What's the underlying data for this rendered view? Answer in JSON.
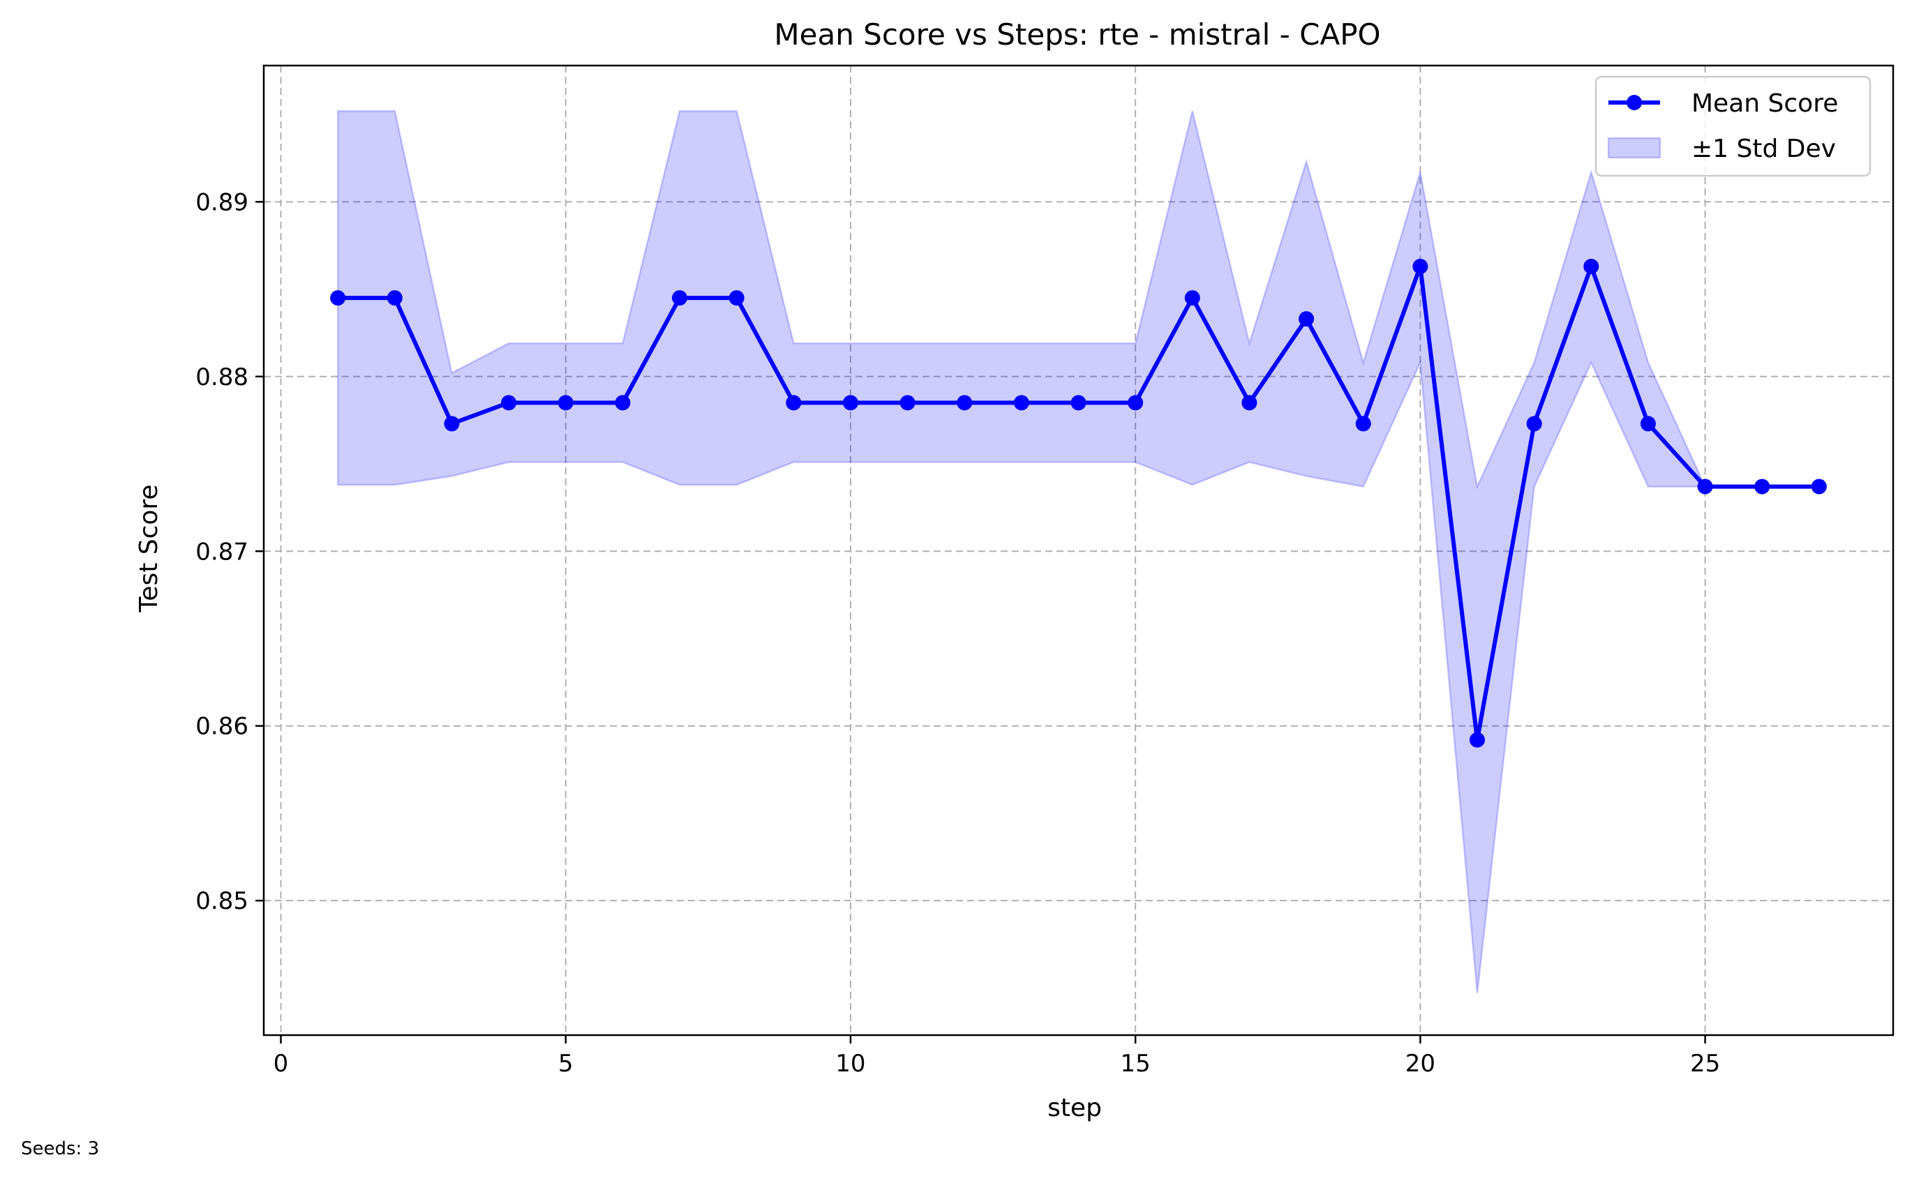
{
  "chart_data": {
    "type": "line",
    "title": "Mean Score vs Steps: rte - mistral - CAPO",
    "xlabel": "step",
    "ylabel": "Test Score",
    "xlim": [
      -0.3,
      28.3
    ],
    "ylim": [
      0.8423,
      0.8978
    ],
    "x_ticks": [
      0,
      5,
      10,
      15,
      20,
      25
    ],
    "y_ticks": [
      0.85,
      0.86,
      0.87,
      0.88,
      0.89
    ],
    "y_tick_labels": [
      "0.85",
      "0.86",
      "0.87",
      "0.88",
      "0.89"
    ],
    "grid": true,
    "legend_position": "top-right",
    "x": [
      1,
      2,
      3,
      4,
      5,
      6,
      7,
      8,
      9,
      10,
      11,
      12,
      13,
      14,
      15,
      16,
      17,
      18,
      19,
      20,
      21,
      22,
      23,
      24,
      25,
      26,
      27
    ],
    "series": [
      {
        "name": "Mean Score",
        "color": "#0000ff",
        "values": [
          0.8845,
          0.8845,
          0.8773,
          0.8785,
          0.8785,
          0.8785,
          0.8845,
          0.8845,
          0.8785,
          0.8785,
          0.8785,
          0.8785,
          0.8785,
          0.8785,
          0.8785,
          0.8845,
          0.8785,
          0.8833,
          0.8773,
          0.8863,
          0.8592,
          0.8773,
          0.8863,
          0.8773,
          0.8737,
          0.8737,
          0.8737
        ]
      }
    ],
    "band": {
      "name": "±1 Std Dev",
      "color": "#0000ff",
      "lower": [
        0.8738,
        0.8738,
        0.8743,
        0.8751,
        0.8751,
        0.8751,
        0.8738,
        0.8738,
        0.8751,
        0.8751,
        0.8751,
        0.8751,
        0.8751,
        0.8751,
        0.8751,
        0.8738,
        0.8751,
        0.8743,
        0.8737,
        0.8808,
        0.8447,
        0.8737,
        0.8808,
        0.8737,
        0.8737,
        0.8737,
        0.8737
      ],
      "upper": [
        0.8952,
        0.8952,
        0.8802,
        0.8819,
        0.8819,
        0.8819,
        0.8952,
        0.8952,
        0.8819,
        0.8819,
        0.8819,
        0.8819,
        0.8819,
        0.8819,
        0.8819,
        0.8952,
        0.8819,
        0.8923,
        0.8808,
        0.8917,
        0.8737,
        0.8808,
        0.8917,
        0.8808,
        0.8737,
        0.8737,
        0.8737
      ]
    }
  },
  "footnote": "Seeds: 3"
}
